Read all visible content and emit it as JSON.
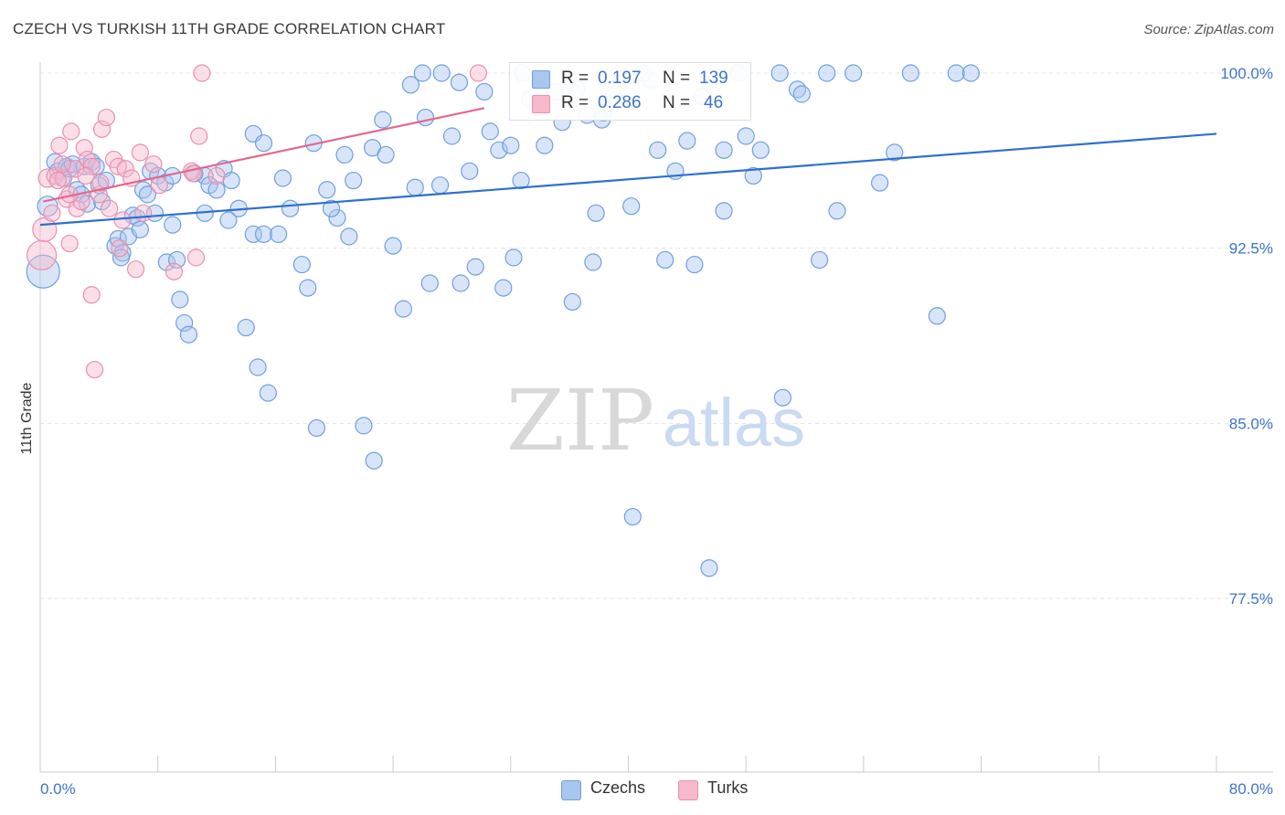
{
  "title": "CZECH VS TURKISH 11TH GRADE CORRELATION CHART",
  "source": "Source: ZipAtlas.com",
  "watermark": {
    "zip": "ZIP",
    "atlas": "atlas"
  },
  "legend": {
    "r_label": "R =",
    "n_label": "N =",
    "rows": [
      {
        "r": "0.197",
        "n": "139"
      },
      {
        "r": "0.286",
        "n": "46"
      }
    ]
  },
  "colors": {
    "czech_fill": "#a9c6ef",
    "czech_stroke": "#6f9fe0",
    "czech_line": "#2f6fd0",
    "turk_fill": "#f6b8cb",
    "turk_stroke": "#ea8fae",
    "turk_line": "#e0698f",
    "grid": "#e4e4e4",
    "axis_text": "#3d74c8"
  },
  "chart_data": {
    "type": "scatter",
    "title": "CZECH VS TURKISH 11TH GRADE CORRELATION CHART",
    "xlabel": "",
    "ylabel": "11th Grade",
    "xlim": [
      0,
      80
    ],
    "ylim": [
      70,
      100.8
    ],
    "x_tick_labels": [
      "0.0%",
      "80.0%"
    ],
    "y_ticks": [
      77.5,
      85.0,
      92.5,
      100.0
    ],
    "y_tick_labels": [
      "77.5%",
      "85.0%",
      "92.5%",
      "100.0%"
    ],
    "legend_bottom": [
      "Czechs",
      "Turks"
    ],
    "series": [
      {
        "name": "Czechs",
        "trend": {
          "x": [
            0,
            80
          ],
          "y": [
            93.5,
            97.4
          ]
        },
        "points": [
          [
            0.2,
            91.5,
            18
          ],
          [
            0.5,
            94.3,
            11
          ],
          [
            1,
            96.2,
            9
          ],
          [
            1.2,
            95.8,
            9
          ],
          [
            1.5,
            95.5,
            9
          ],
          [
            1.8,
            96.0,
            9
          ],
          [
            2.0,
            95.9,
            9
          ],
          [
            2.2,
            96.1,
            9
          ],
          [
            2.5,
            95.0,
            9
          ],
          [
            2.8,
            94.8,
            9
          ],
          [
            3.0,
            96.0,
            9
          ],
          [
            3.2,
            94.4,
            9
          ],
          [
            3.5,
            96.2,
            9
          ],
          [
            3.8,
            96.0,
            9
          ],
          [
            4.0,
            95.2,
            9
          ],
          [
            4.2,
            94.5,
            9
          ],
          [
            5.1,
            92.6,
            9
          ],
          [
            5.3,
            92.9,
            9
          ],
          [
            5.6,
            92.3,
            9
          ],
          [
            6.0,
            93.0,
            9
          ],
          [
            6.3,
            93.9,
            9
          ],
          [
            6.6,
            93.8,
            9
          ],
          [
            7.0,
            95.0,
            9
          ],
          [
            7.3,
            94.8,
            9
          ],
          [
            7.5,
            95.8,
            9
          ],
          [
            8.0,
            95.6,
            9
          ],
          [
            8.5,
            95.3,
            9
          ],
          [
            9.0,
            95.6,
            9
          ],
          [
            8.6,
            91.9,
            9
          ],
          [
            9.3,
            92.0,
            9
          ],
          [
            9.5,
            90.3,
            9
          ],
          [
            9.8,
            89.3,
            9
          ],
          [
            10.1,
            88.8,
            9
          ],
          [
            9.0,
            93.5,
            9
          ],
          [
            11.2,
            95.6,
            9
          ],
          [
            11.5,
            95.2,
            9
          ],
          [
            12.0,
            95.0,
            9
          ],
          [
            12.5,
            95.9,
            9
          ],
          [
            13.0,
            95.4,
            9
          ],
          [
            13.5,
            94.2,
            9
          ],
          [
            14.5,
            97.4,
            9
          ],
          [
            15.2,
            97.0,
            9
          ],
          [
            14.5,
            93.1,
            9
          ],
          [
            15.2,
            93.1,
            9
          ],
          [
            14.0,
            89.1,
            9
          ],
          [
            14.8,
            87.4,
            9
          ],
          [
            15.5,
            86.3,
            9
          ],
          [
            16.5,
            95.5,
            9
          ],
          [
            17.0,
            94.2,
            9
          ],
          [
            17.8,
            91.8,
            9
          ],
          [
            18.2,
            90.8,
            9
          ],
          [
            18.8,
            84.8,
            9
          ],
          [
            19.5,
            95.0,
            9
          ],
          [
            20.2,
            93.8,
            9
          ],
          [
            20.7,
            96.5,
            9
          ],
          [
            21.3,
            95.4,
            9
          ],
          [
            22.0,
            84.9,
            9
          ],
          [
            22.7,
            83.4,
            9
          ],
          [
            23.3,
            98.0,
            9
          ],
          [
            24.0,
            92.6,
            9
          ],
          [
            24.7,
            89.9,
            9
          ],
          [
            25.2,
            99.5,
            9
          ],
          [
            25.5,
            95.1,
            9
          ],
          [
            26.2,
            98.1,
            9
          ],
          [
            26.5,
            91.0,
            9
          ],
          [
            27.2,
            95.2,
            9
          ],
          [
            28.0,
            97.3,
            9
          ],
          [
            28.6,
            91.0,
            9
          ],
          [
            29.2,
            95.8,
            9
          ],
          [
            29.6,
            91.7,
            9
          ],
          [
            30.2,
            99.2,
            9
          ],
          [
            30.6,
            97.5,
            9
          ],
          [
            31.2,
            96.7,
            9
          ],
          [
            31.5,
            90.8,
            9
          ],
          [
            32.0,
            96.9,
            9
          ],
          [
            32.2,
            92.1,
            9
          ],
          [
            32.7,
            95.4,
            9
          ],
          [
            33.3,
            98.9,
            9
          ],
          [
            33.8,
            98.5,
            9
          ],
          [
            34.3,
            96.9,
            9
          ],
          [
            35.0,
            99.2,
            9
          ],
          [
            35.5,
            97.9,
            9
          ],
          [
            36.2,
            90.2,
            9
          ],
          [
            37.2,
            98.2,
            9
          ],
          [
            37.6,
            91.9,
            9
          ],
          [
            38.3,
            98.3,
            9
          ],
          [
            39.0,
            99.0,
            9
          ],
          [
            37.8,
            94.0,
            9
          ],
          [
            40.2,
            94.3,
            9
          ],
          [
            40.3,
            81.0,
            9
          ],
          [
            41.5,
            99.7,
            9
          ],
          [
            42.0,
            96.7,
            9
          ],
          [
            42.5,
            92.0,
            9
          ],
          [
            43.2,
            95.8,
            9
          ],
          [
            44.0,
            97.1,
            9
          ],
          [
            44.5,
            91.8,
            9
          ],
          [
            45.0,
            99.0,
            9
          ],
          [
            45.5,
            78.8,
            9
          ],
          [
            46.5,
            96.7,
            9
          ],
          [
            46.5,
            94.1,
            9
          ],
          [
            47.5,
            100.0,
            9
          ],
          [
            48.0,
            97.3,
            9
          ],
          [
            48.5,
            95.6,
            9
          ],
          [
            49.0,
            96.7,
            9
          ],
          [
            50.3,
            100.0,
            9
          ],
          [
            50.5,
            86.1,
            9
          ],
          [
            51.5,
            99.3,
            9
          ],
          [
            51.8,
            99.1,
            9
          ],
          [
            53.0,
            92.0,
            9
          ],
          [
            53.5,
            100.0,
            9
          ],
          [
            54.2,
            94.1,
            9
          ],
          [
            55.3,
            100.0,
            9
          ],
          [
            57.1,
            95.3,
            9
          ],
          [
            58.1,
            96.6,
            9
          ],
          [
            59.2,
            100.0,
            9
          ],
          [
            61.0,
            89.6,
            9
          ],
          [
            62.3,
            100.0,
            9
          ],
          [
            63.3,
            100.0,
            9
          ],
          [
            27.3,
            100.0,
            9
          ],
          [
            28.5,
            99.6,
            9
          ],
          [
            32.8,
            100.0,
            9
          ],
          [
            41.0,
            100.0,
            9
          ],
          [
            38.2,
            98.0,
            9
          ],
          [
            36.5,
            99.3,
            9
          ],
          [
            26.0,
            100.0,
            9
          ],
          [
            22.6,
            96.8,
            9
          ],
          [
            23.5,
            96.5,
            9
          ],
          [
            21.0,
            93.0,
            9
          ],
          [
            19.8,
            94.2,
            9
          ],
          [
            18.6,
            97.0,
            9
          ],
          [
            16.2,
            93.1,
            9
          ],
          [
            12.8,
            93.7,
            9
          ],
          [
            11.2,
            94.0,
            9
          ],
          [
            10.5,
            95.7,
            9
          ],
          [
            7.8,
            94.0,
            9
          ],
          [
            6.8,
            93.3,
            9
          ],
          [
            5.5,
            92.1,
            9
          ],
          [
            4.5,
            95.4,
            9
          ]
        ]
      },
      {
        "name": "Turks",
        "trend": {
          "x": [
            0.2,
            30.2
          ],
          "y": [
            94.5,
            98.5
          ]
        },
        "points": [
          [
            0.1,
            92.2,
            16
          ],
          [
            0.3,
            93.3,
            13
          ],
          [
            0.5,
            95.5,
            10
          ],
          [
            0.8,
            94.0,
            9
          ],
          [
            1.0,
            95.6,
            9
          ],
          [
            1.3,
            96.9,
            9
          ],
          [
            1.6,
            95.5,
            9
          ],
          [
            1.8,
            94.6,
            9
          ],
          [
            2.0,
            92.7,
            9
          ],
          [
            2.1,
            97.5,
            9
          ],
          [
            2.5,
            94.2,
            9
          ],
          [
            2.8,
            94.5,
            9
          ],
          [
            3.0,
            96.8,
            9
          ],
          [
            3.2,
            96.3,
            9
          ],
          [
            3.5,
            96.0,
            9
          ],
          [
            3.5,
            90.5,
            9
          ],
          [
            3.7,
            87.3,
            9
          ],
          [
            4.0,
            94.8,
            9
          ],
          [
            4.2,
            97.6,
            9
          ],
          [
            4.5,
            98.1,
            9
          ],
          [
            4.7,
            94.2,
            9
          ],
          [
            5.0,
            96.3,
            9
          ],
          [
            5.3,
            96.0,
            9
          ],
          [
            5.4,
            92.5,
            9
          ],
          [
            5.6,
            93.7,
            9
          ],
          [
            6.5,
            91.6,
            9
          ],
          [
            6.8,
            96.6,
            9
          ],
          [
            7.0,
            94.0,
            9
          ],
          [
            7.7,
            96.1,
            9
          ],
          [
            10.3,
            95.8,
            9
          ],
          [
            10.4,
            95.7,
            9
          ],
          [
            10.6,
            92.1,
            9
          ],
          [
            10.8,
            97.3,
            9
          ],
          [
            11.0,
            100.0,
            9
          ],
          [
            2.0,
            94.8,
            9
          ],
          [
            2.4,
            95.9,
            9
          ],
          [
            3.1,
            95.6,
            9
          ],
          [
            1.2,
            95.4,
            9
          ],
          [
            1.5,
            96.1,
            9
          ],
          [
            4.1,
            95.3,
            9
          ],
          [
            5.8,
            95.9,
            9
          ],
          [
            6.2,
            95.5,
            9
          ],
          [
            8.1,
            95.2,
            9
          ],
          [
            9.1,
            91.5,
            9
          ],
          [
            12.0,
            95.6,
            9
          ],
          [
            29.8,
            100.0,
            9
          ]
        ]
      }
    ]
  }
}
